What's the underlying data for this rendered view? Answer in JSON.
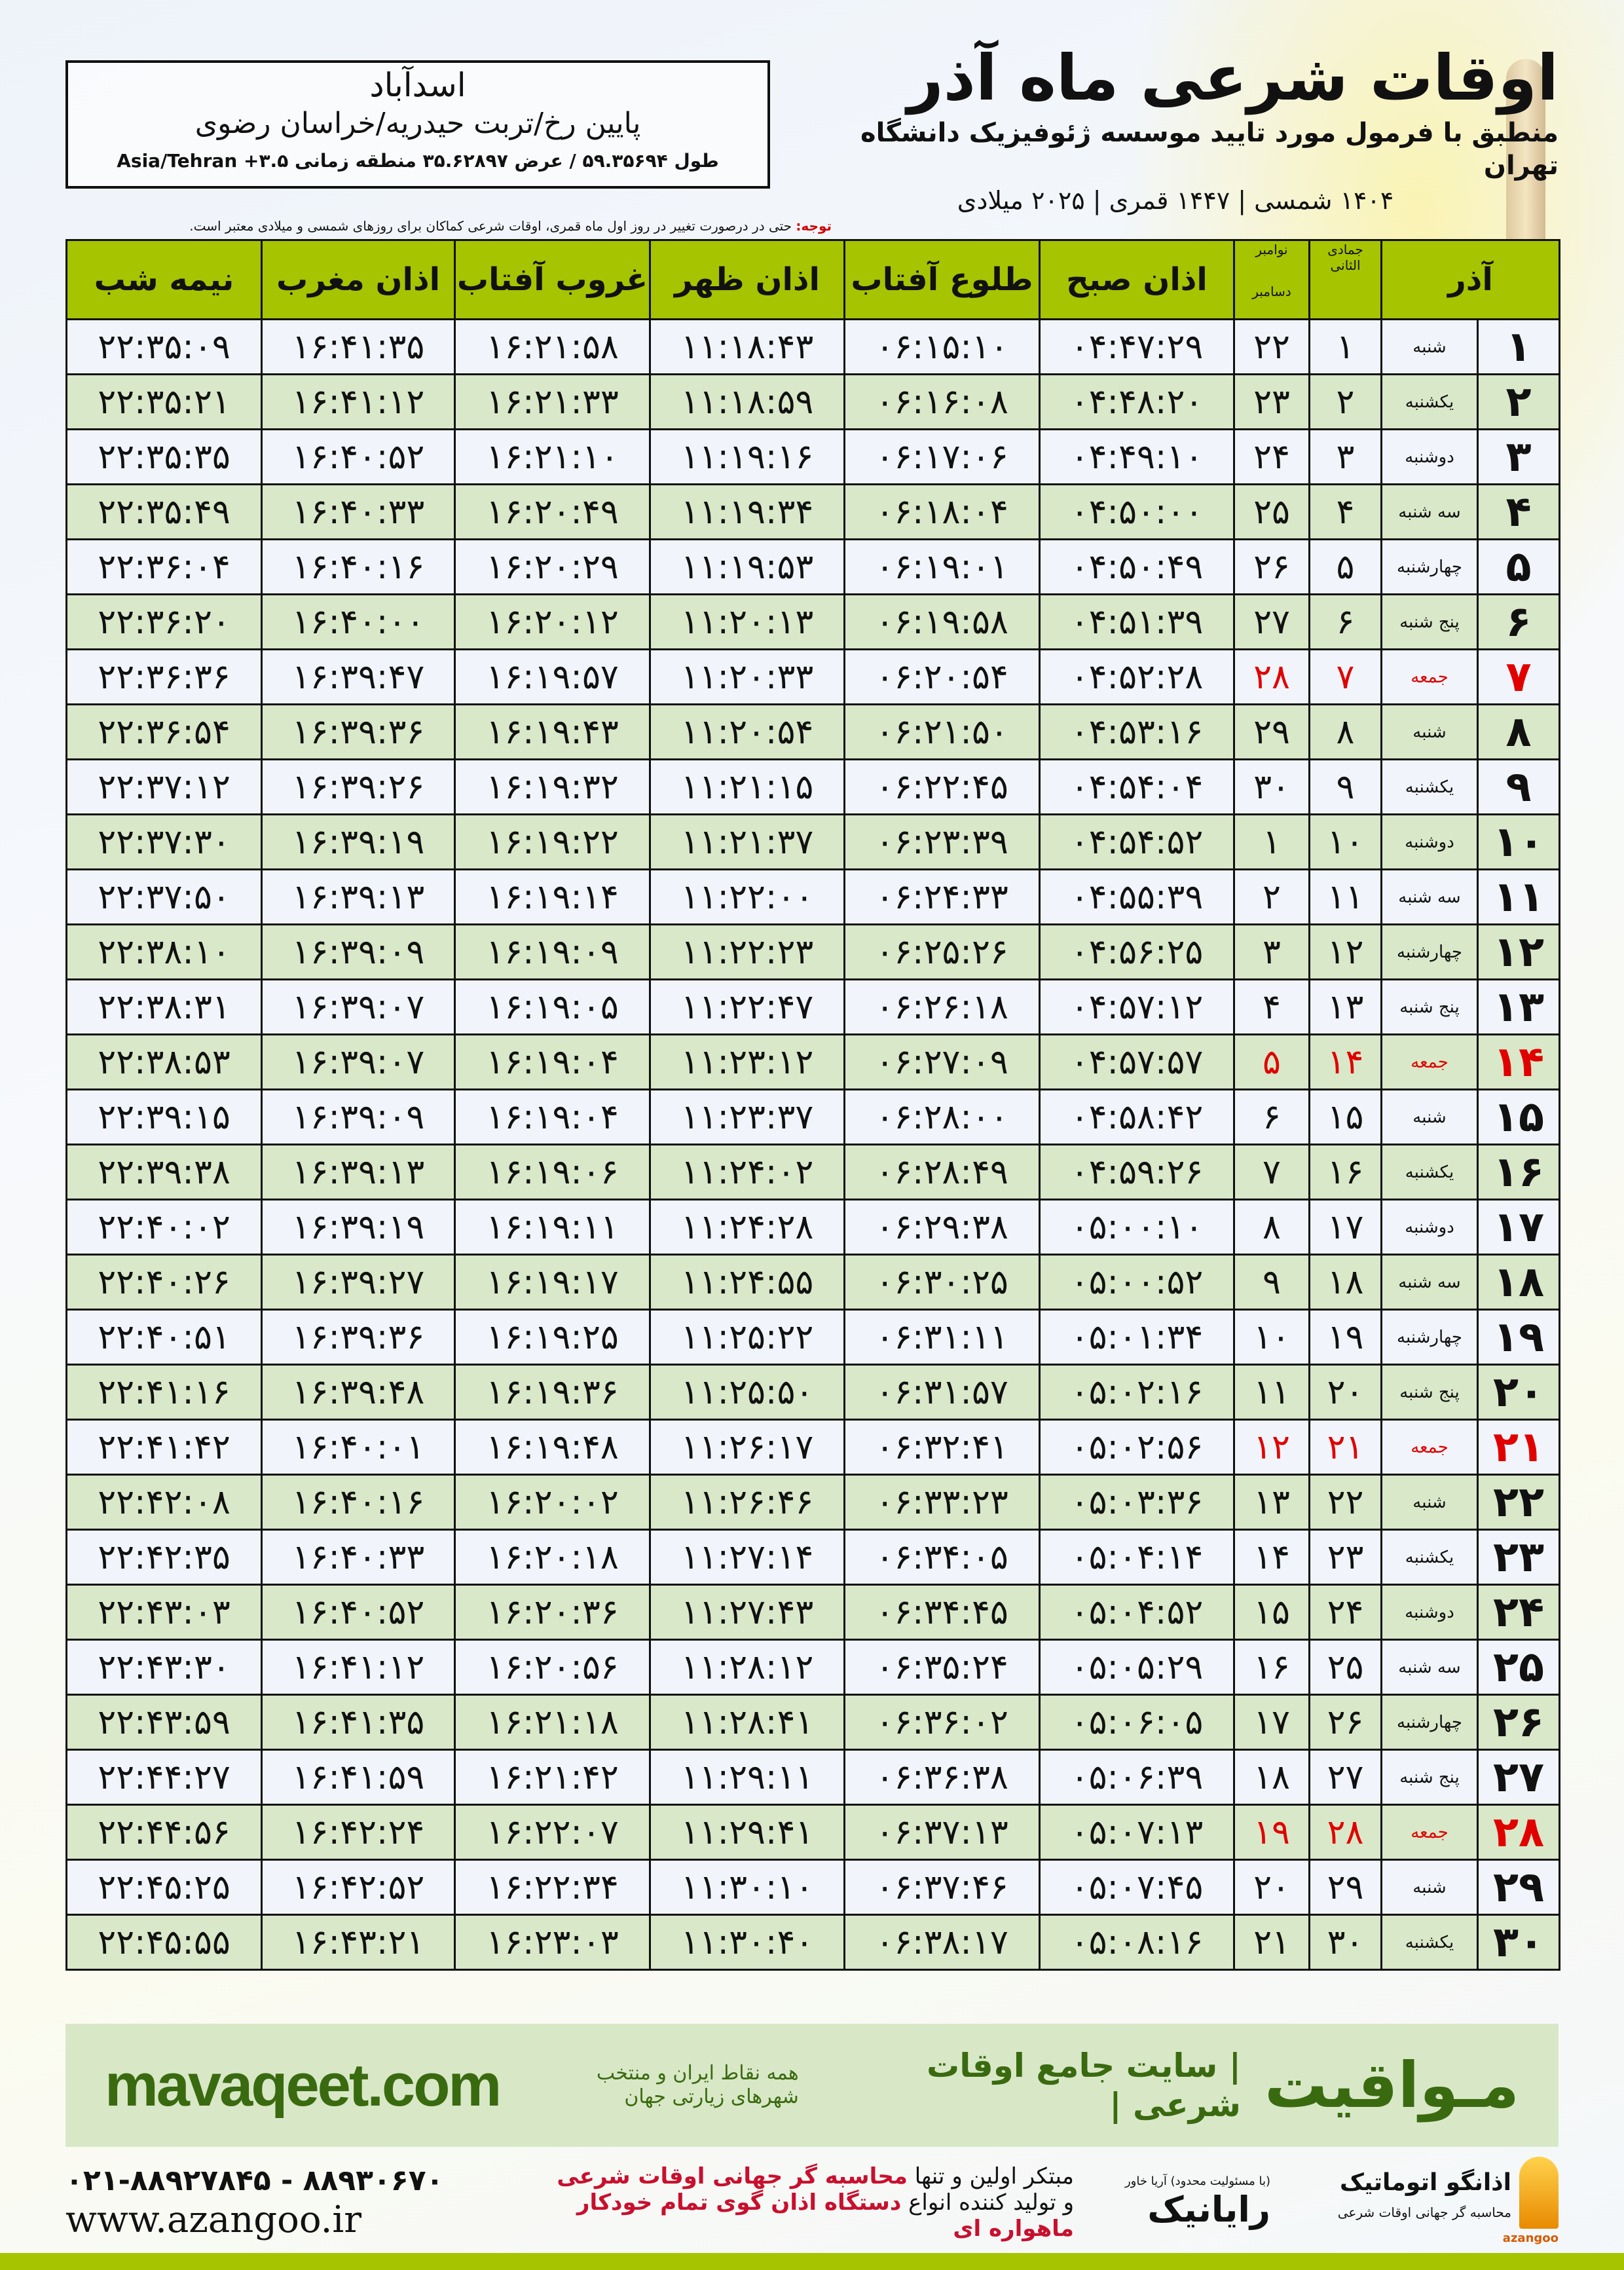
{
  "header": {
    "title": "اوقات شرعی ماه آذر",
    "subtitle": "منطبق با فرمول مورد تایید موسسه ژئوفیزیک دانشگاه تهران",
    "dates": "۱۴۰۴ شمسی | ۱۴۴۷ قمری | ۲۰۲۵ میلادی"
  },
  "location": {
    "city": "اسدآباد",
    "region": "پایین رخ/تربت حیدریه/خراسان رضوی",
    "coords": "طول ۵۹.۳۵۶۹۴ / عرض ۳۵.۶۲۸۹۷ منطقه زمانی ۳.۵+ Asia/Tehran"
  },
  "note": {
    "label": "توجه:",
    "text": " حتی در درصورت تغییر در روز اول ماه قمری، اوقات شرعی کماکان برای روزهای شمسی و میلادی معتبر است."
  },
  "table": {
    "headers": {
      "azar": "آذر",
      "hijri": "جمادی الثانی",
      "gregorian_top": "نوامبر",
      "gregorian_bottom": "دسامبر",
      "fajr": "اذان صبح",
      "sunrise": "طلوع آفتاب",
      "dhuhr": "اذان ظهر",
      "sunset": "غروب آفتاب",
      "maghrib": "اذان مغرب",
      "midnight": "نیمه شب"
    },
    "holiday_color": "#e00000",
    "rows": [
      {
        "day": "۱",
        "weekday": "شنبه",
        "hijri": "۱",
        "greg": "۲۲",
        "fajr": "۰۴:۴۷:۲۹",
        "sunrise": "۰۶:۱۵:۱۰",
        "dhuhr": "۱۱:۱۸:۴۳",
        "sunset": "۱۶:۲۱:۵۸",
        "maghrib": "۱۶:۴۱:۳۵",
        "midnight": "۲۲:۳۵:۰۹",
        "holiday": false
      },
      {
        "day": "۲",
        "weekday": "یکشنبه",
        "hijri": "۲",
        "greg": "۲۳",
        "fajr": "۰۴:۴۸:۲۰",
        "sunrise": "۰۶:۱۶:۰۸",
        "dhuhr": "۱۱:۱۸:۵۹",
        "sunset": "۱۶:۲۱:۳۳",
        "maghrib": "۱۶:۴۱:۱۲",
        "midnight": "۲۲:۳۵:۲۱",
        "holiday": false
      },
      {
        "day": "۳",
        "weekday": "دوشنبه",
        "hijri": "۳",
        "greg": "۲۴",
        "fajr": "۰۴:۴۹:۱۰",
        "sunrise": "۰۶:۱۷:۰۶",
        "dhuhr": "۱۱:۱۹:۱۶",
        "sunset": "۱۶:۲۱:۱۰",
        "maghrib": "۱۶:۴۰:۵۲",
        "midnight": "۲۲:۳۵:۳۵",
        "holiday": false
      },
      {
        "day": "۴",
        "weekday": "سه شنبه",
        "hijri": "۴",
        "greg": "۲۵",
        "fajr": "۰۴:۵۰:۰۰",
        "sunrise": "۰۶:۱۸:۰۴",
        "dhuhr": "۱۱:۱۹:۳۴",
        "sunset": "۱۶:۲۰:۴۹",
        "maghrib": "۱۶:۴۰:۳۳",
        "midnight": "۲۲:۳۵:۴۹",
        "holiday": false
      },
      {
        "day": "۵",
        "weekday": "چهارشنبه",
        "hijri": "۵",
        "greg": "۲۶",
        "fajr": "۰۴:۵۰:۴۹",
        "sunrise": "۰۶:۱۹:۰۱",
        "dhuhr": "۱۱:۱۹:۵۳",
        "sunset": "۱۶:۲۰:۲۹",
        "maghrib": "۱۶:۴۰:۱۶",
        "midnight": "۲۲:۳۶:۰۴",
        "holiday": false
      },
      {
        "day": "۶",
        "weekday": "پنج شنبه",
        "hijri": "۶",
        "greg": "۲۷",
        "fajr": "۰۴:۵۱:۳۹",
        "sunrise": "۰۶:۱۹:۵۸",
        "dhuhr": "۱۱:۲۰:۱۳",
        "sunset": "۱۶:۲۰:۱۲",
        "maghrib": "۱۶:۴۰:۰۰",
        "midnight": "۲۲:۳۶:۲۰",
        "holiday": false
      },
      {
        "day": "۷",
        "weekday": "جمعه",
        "hijri": "۷",
        "greg": "۲۸",
        "fajr": "۰۴:۵۲:۲۸",
        "sunrise": "۰۶:۲۰:۵۴",
        "dhuhr": "۱۱:۲۰:۳۳",
        "sunset": "۱۶:۱۹:۵۷",
        "maghrib": "۱۶:۳۹:۴۷",
        "midnight": "۲۲:۳۶:۳۶",
        "holiday": true
      },
      {
        "day": "۸",
        "weekday": "شنبه",
        "hijri": "۸",
        "greg": "۲۹",
        "fajr": "۰۴:۵۳:۱۶",
        "sunrise": "۰۶:۲۱:۵۰",
        "dhuhr": "۱۱:۲۰:۵۴",
        "sunset": "۱۶:۱۹:۴۳",
        "maghrib": "۱۶:۳۹:۳۶",
        "midnight": "۲۲:۳۶:۵۴",
        "holiday": false
      },
      {
        "day": "۹",
        "weekday": "یکشنبه",
        "hijri": "۹",
        "greg": "۳۰",
        "fajr": "۰۴:۵۴:۰۴",
        "sunrise": "۰۶:۲۲:۴۵",
        "dhuhr": "۱۱:۲۱:۱۵",
        "sunset": "۱۶:۱۹:۳۲",
        "maghrib": "۱۶:۳۹:۲۶",
        "midnight": "۲۲:۳۷:۱۲",
        "holiday": false
      },
      {
        "day": "۱۰",
        "weekday": "دوشنبه",
        "hijri": "۱۰",
        "greg": "۱",
        "fajr": "۰۴:۵۴:۵۲",
        "sunrise": "۰۶:۲۳:۳۹",
        "dhuhr": "۱۱:۲۱:۳۷",
        "sunset": "۱۶:۱۹:۲۲",
        "maghrib": "۱۶:۳۹:۱۹",
        "midnight": "۲۲:۳۷:۳۰",
        "holiday": false
      },
      {
        "day": "۱۱",
        "weekday": "سه شنبه",
        "hijri": "۱۱",
        "greg": "۲",
        "fajr": "۰۴:۵۵:۳۹",
        "sunrise": "۰۶:۲۴:۳۳",
        "dhuhr": "۱۱:۲۲:۰۰",
        "sunset": "۱۶:۱۹:۱۴",
        "maghrib": "۱۶:۳۹:۱۳",
        "midnight": "۲۲:۳۷:۵۰",
        "holiday": false
      },
      {
        "day": "۱۲",
        "weekday": "چهارشنبه",
        "hijri": "۱۲",
        "greg": "۳",
        "fajr": "۰۴:۵۶:۲۵",
        "sunrise": "۰۶:۲۵:۲۶",
        "dhuhr": "۱۱:۲۲:۲۳",
        "sunset": "۱۶:۱۹:۰۹",
        "maghrib": "۱۶:۳۹:۰۹",
        "midnight": "۲۲:۳۸:۱۰",
        "holiday": false
      },
      {
        "day": "۱۳",
        "weekday": "پنج شنبه",
        "hijri": "۱۳",
        "greg": "۴",
        "fajr": "۰۴:۵۷:۱۲",
        "sunrise": "۰۶:۲۶:۱۸",
        "dhuhr": "۱۱:۲۲:۴۷",
        "sunset": "۱۶:۱۹:۰۵",
        "maghrib": "۱۶:۳۹:۰۷",
        "midnight": "۲۲:۳۸:۳۱",
        "holiday": false
      },
      {
        "day": "۱۴",
        "weekday": "جمعه",
        "hijri": "۱۴",
        "greg": "۵",
        "fajr": "۰۴:۵۷:۵۷",
        "sunrise": "۰۶:۲۷:۰۹",
        "dhuhr": "۱۱:۲۳:۱۲",
        "sunset": "۱۶:۱۹:۰۴",
        "maghrib": "۱۶:۳۹:۰۷",
        "midnight": "۲۲:۳۸:۵۳",
        "holiday": true
      },
      {
        "day": "۱۵",
        "weekday": "شنبه",
        "hijri": "۱۵",
        "greg": "۶",
        "fajr": "۰۴:۵۸:۴۲",
        "sunrise": "۰۶:۲۸:۰۰",
        "dhuhr": "۱۱:۲۳:۳۷",
        "sunset": "۱۶:۱۹:۰۴",
        "maghrib": "۱۶:۳۹:۰۹",
        "midnight": "۲۲:۳۹:۱۵",
        "holiday": false
      },
      {
        "day": "۱۶",
        "weekday": "یکشنبه",
        "hijri": "۱۶",
        "greg": "۷",
        "fajr": "۰۴:۵۹:۲۶",
        "sunrise": "۰۶:۲۸:۴۹",
        "dhuhr": "۱۱:۲۴:۰۲",
        "sunset": "۱۶:۱۹:۰۶",
        "maghrib": "۱۶:۳۹:۱۳",
        "midnight": "۲۲:۳۹:۳۸",
        "holiday": false
      },
      {
        "day": "۱۷",
        "weekday": "دوشنبه",
        "hijri": "۱۷",
        "greg": "۸",
        "fajr": "۰۵:۰۰:۱۰",
        "sunrise": "۰۶:۲۹:۳۸",
        "dhuhr": "۱۱:۲۴:۲۸",
        "sunset": "۱۶:۱۹:۱۱",
        "maghrib": "۱۶:۳۹:۱۹",
        "midnight": "۲۲:۴۰:۰۲",
        "holiday": false
      },
      {
        "day": "۱۸",
        "weekday": "سه شنبه",
        "hijri": "۱۸",
        "greg": "۹",
        "fajr": "۰۵:۰۰:۵۲",
        "sunrise": "۰۶:۳۰:۲۵",
        "dhuhr": "۱۱:۲۴:۵۵",
        "sunset": "۱۶:۱۹:۱۷",
        "maghrib": "۱۶:۳۹:۲۷",
        "midnight": "۲۲:۴۰:۲۶",
        "holiday": false
      },
      {
        "day": "۱۹",
        "weekday": "چهارشنبه",
        "hijri": "۱۹",
        "greg": "۱۰",
        "fajr": "۰۵:۰۱:۳۴",
        "sunrise": "۰۶:۳۱:۱۱",
        "dhuhr": "۱۱:۲۵:۲۲",
        "sunset": "۱۶:۱۹:۲۵",
        "maghrib": "۱۶:۳۹:۳۶",
        "midnight": "۲۲:۴۰:۵۱",
        "holiday": false
      },
      {
        "day": "۲۰",
        "weekday": "پنج شنبه",
        "hijri": "۲۰",
        "greg": "۱۱",
        "fajr": "۰۵:۰۲:۱۶",
        "sunrise": "۰۶:۳۱:۵۷",
        "dhuhr": "۱۱:۲۵:۵۰",
        "sunset": "۱۶:۱۹:۳۶",
        "maghrib": "۱۶:۳۹:۴۸",
        "midnight": "۲۲:۴۱:۱۶",
        "holiday": false
      },
      {
        "day": "۲۱",
        "weekday": "جمعه",
        "hijri": "۲۱",
        "greg": "۱۲",
        "fajr": "۰۵:۰۲:۵۶",
        "sunrise": "۰۶:۳۲:۴۱",
        "dhuhr": "۱۱:۲۶:۱۷",
        "sunset": "۱۶:۱۹:۴۸",
        "maghrib": "۱۶:۴۰:۰۱",
        "midnight": "۲۲:۴۱:۴۲",
        "holiday": true
      },
      {
        "day": "۲۲",
        "weekday": "شنبه",
        "hijri": "۲۲",
        "greg": "۱۳",
        "fajr": "۰۵:۰۳:۳۶",
        "sunrise": "۰۶:۳۳:۲۳",
        "dhuhr": "۱۱:۲۶:۴۶",
        "sunset": "۱۶:۲۰:۰۲",
        "maghrib": "۱۶:۴۰:۱۶",
        "midnight": "۲۲:۴۲:۰۸",
        "holiday": false
      },
      {
        "day": "۲۳",
        "weekday": "یکشنبه",
        "hijri": "۲۳",
        "greg": "۱۴",
        "fajr": "۰۵:۰۴:۱۴",
        "sunrise": "۰۶:۳۴:۰۵",
        "dhuhr": "۱۱:۲۷:۱۴",
        "sunset": "۱۶:۲۰:۱۸",
        "maghrib": "۱۶:۴۰:۳۳",
        "midnight": "۲۲:۴۲:۳۵",
        "holiday": false
      },
      {
        "day": "۲۴",
        "weekday": "دوشنبه",
        "hijri": "۲۴",
        "greg": "۱۵",
        "fajr": "۰۵:۰۴:۵۲",
        "sunrise": "۰۶:۳۴:۴۵",
        "dhuhr": "۱۱:۲۷:۴۳",
        "sunset": "۱۶:۲۰:۳۶",
        "maghrib": "۱۶:۴۰:۵۲",
        "midnight": "۲۲:۴۳:۰۳",
        "holiday": false
      },
      {
        "day": "۲۵",
        "weekday": "سه شنبه",
        "hijri": "۲۵",
        "greg": "۱۶",
        "fajr": "۰۵:۰۵:۲۹",
        "sunrise": "۰۶:۳۵:۲۴",
        "dhuhr": "۱۱:۲۸:۱۲",
        "sunset": "۱۶:۲۰:۵۶",
        "maghrib": "۱۶:۴۱:۱۲",
        "midnight": "۲۲:۴۳:۳۰",
        "holiday": false
      },
      {
        "day": "۲۶",
        "weekday": "چهارشنبه",
        "hijri": "۲۶",
        "greg": "۱۷",
        "fajr": "۰۵:۰۶:۰۵",
        "sunrise": "۰۶:۳۶:۰۲",
        "dhuhr": "۱۱:۲۸:۴۱",
        "sunset": "۱۶:۲۱:۱۸",
        "maghrib": "۱۶:۴۱:۳۵",
        "midnight": "۲۲:۴۳:۵۹",
        "holiday": false
      },
      {
        "day": "۲۷",
        "weekday": "پنج شنبه",
        "hijri": "۲۷",
        "greg": "۱۸",
        "fajr": "۰۵:۰۶:۳۹",
        "sunrise": "۰۶:۳۶:۳۸",
        "dhuhr": "۱۱:۲۹:۱۱",
        "sunset": "۱۶:۲۱:۴۲",
        "maghrib": "۱۶:۴۱:۵۹",
        "midnight": "۲۲:۴۴:۲۷",
        "holiday": false
      },
      {
        "day": "۲۸",
        "weekday": "جمعه",
        "hijri": "۲۸",
        "greg": "۱۹",
        "fajr": "۰۵:۰۷:۱۳",
        "sunrise": "۰۶:۳۷:۱۳",
        "dhuhr": "۱۱:۲۹:۴۱",
        "sunset": "۱۶:۲۲:۰۷",
        "maghrib": "۱۶:۴۲:۲۴",
        "midnight": "۲۲:۴۴:۵۶",
        "holiday": true
      },
      {
        "day": "۲۹",
        "weekday": "شنبه",
        "hijri": "۲۹",
        "greg": "۲۰",
        "fajr": "۰۵:۰۷:۴۵",
        "sunrise": "۰۶:۳۷:۴۶",
        "dhuhr": "۱۱:۳۰:۱۰",
        "sunset": "۱۶:۲۲:۳۴",
        "maghrib": "۱۶:۴۲:۵۲",
        "midnight": "۲۲:۴۵:۲۵",
        "holiday": false
      },
      {
        "day": "۳۰",
        "weekday": "یکشنبه",
        "hijri": "۳۰",
        "greg": "۲۱",
        "fajr": "۰۵:۰۸:۱۶",
        "sunrise": "۰۶:۳۸:۱۷",
        "dhuhr": "۱۱:۳۰:۴۰",
        "sunset": "۱۶:۲۳:۰۳",
        "maghrib": "۱۶:۴۳:۲۱",
        "midnight": "۲۲:۴۵:۵۵",
        "holiday": false
      }
    ]
  },
  "banner": {
    "brand": "مـواقیت",
    "tagline": "| سایت جامع اوقات شرعی |",
    "tagline2": "همه نقاط ایران و منتخب شهرهای زیارتی جهان",
    "site": "mavaqeet.com"
  },
  "footer": {
    "phone": "۰۲۱-۸۸۹۲۷۸۴۵ - ۸۸۹۳۰۶۷۰",
    "website": "www.azangoo.ir",
    "slogan_line1_a": "مبتکر اولین و تنها ",
    "slogan_line1_b": "محاسبه گر جهانی اوقات شرعی",
    "slogan_line2_a": "و تولید کننده انواع ",
    "slogan_line2_b": "دستگاه اذان گوی تمام خودکار ماهواره ای",
    "logo_rayanik": "رایانیک",
    "logo_rayanik_small": "(با مسئولیت محدود) آریا خاور",
    "logo_azangoo": "اذانگو اتوماتیک",
    "logo_azangoo_sub": "محاسبه گر جهانی اوقات شرعی",
    "logo_azangoo_en": "azangoo"
  }
}
